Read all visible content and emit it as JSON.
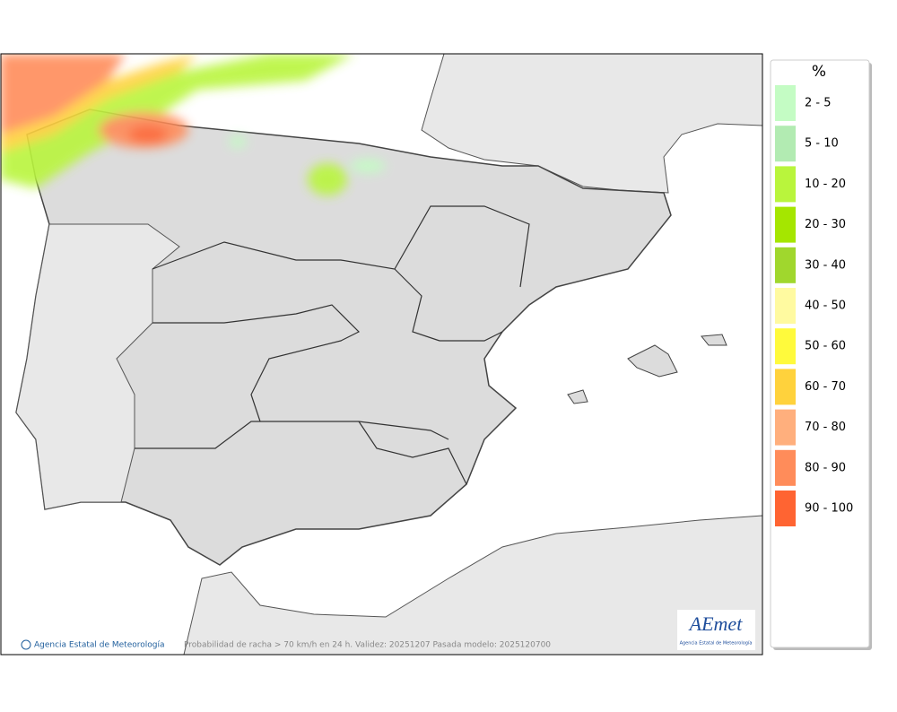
{
  "map": {
    "footer_credit": "Agencia Estatal de Meteorología",
    "caption": "Probabilidad de racha > 70 km/h en 24 h. Validez: 20251207 Pasada modelo: 2025120700",
    "logo": {
      "name": "AEmet",
      "subtitle": "Agencia Estatal de Meteorología"
    }
  },
  "legend": {
    "title": "%",
    "items": [
      {
        "label": "2 - 5",
        "color": "#c4fcc4"
      },
      {
        "label": "5 - 10",
        "color": "#b2ebb2"
      },
      {
        "label": "10 - 20",
        "color": "#b9f53c"
      },
      {
        "label": "20 - 30",
        "color": "#a5e600"
      },
      {
        "label": "30 - 40",
        "color": "#a0d72d"
      },
      {
        "label": "40 - 50",
        "color": "#fffaa0"
      },
      {
        "label": "50 - 60",
        "color": "#fffa3c"
      },
      {
        "label": "60 - 70",
        "color": "#ffd23c"
      },
      {
        "label": "70 - 80",
        "color": "#ffaf7d"
      },
      {
        "label": "80 - 90",
        "color": "#ff8c5a"
      },
      {
        "label": "90 - 100",
        "color": "#ff6432"
      }
    ]
  }
}
